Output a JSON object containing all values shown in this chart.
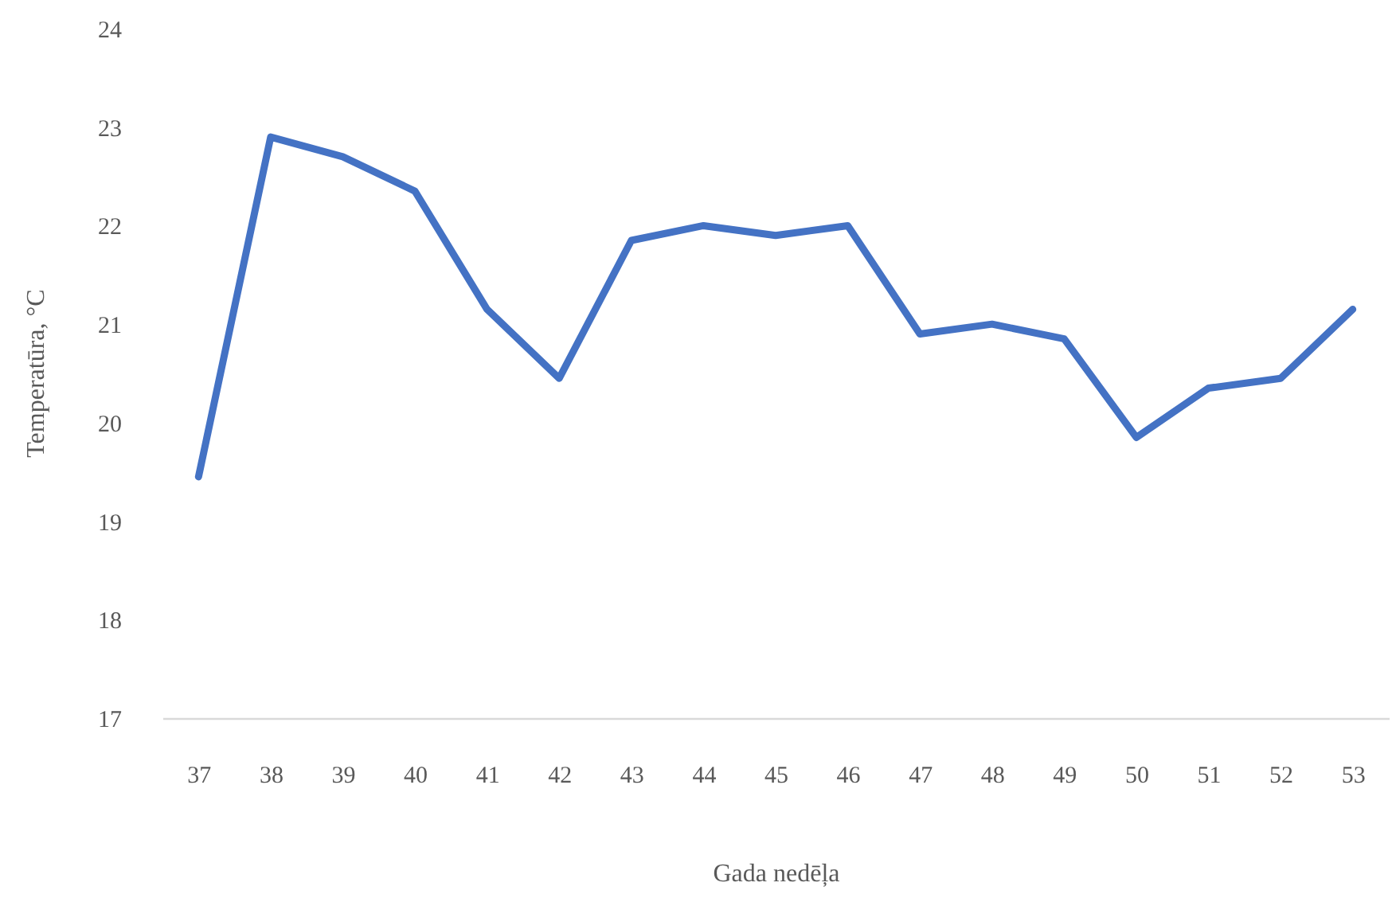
{
  "chart_data": {
    "type": "line",
    "xlabel": "Gada nedēļa",
    "ylabel": "Temperatūra, °C",
    "categories": [
      "37",
      "38",
      "39",
      "40",
      "41",
      "42",
      "43",
      "44",
      "45",
      "46",
      "47",
      "48",
      "49",
      "50",
      "51",
      "52",
      "53"
    ],
    "series": [
      {
        "color": "#4472c4",
        "values": [
          19.45,
          22.9,
          22.7,
          22.35,
          21.15,
          20.45,
          21.85,
          22.0,
          21.9,
          22.0,
          20.9,
          21.0,
          20.85,
          19.85,
          20.35,
          20.45,
          21.15
        ]
      }
    ],
    "ylim": [
      17,
      24
    ],
    "yticks": [
      17,
      18,
      19,
      20,
      21,
      22,
      23,
      24
    ],
    "grid": false,
    "marker": "none"
  }
}
